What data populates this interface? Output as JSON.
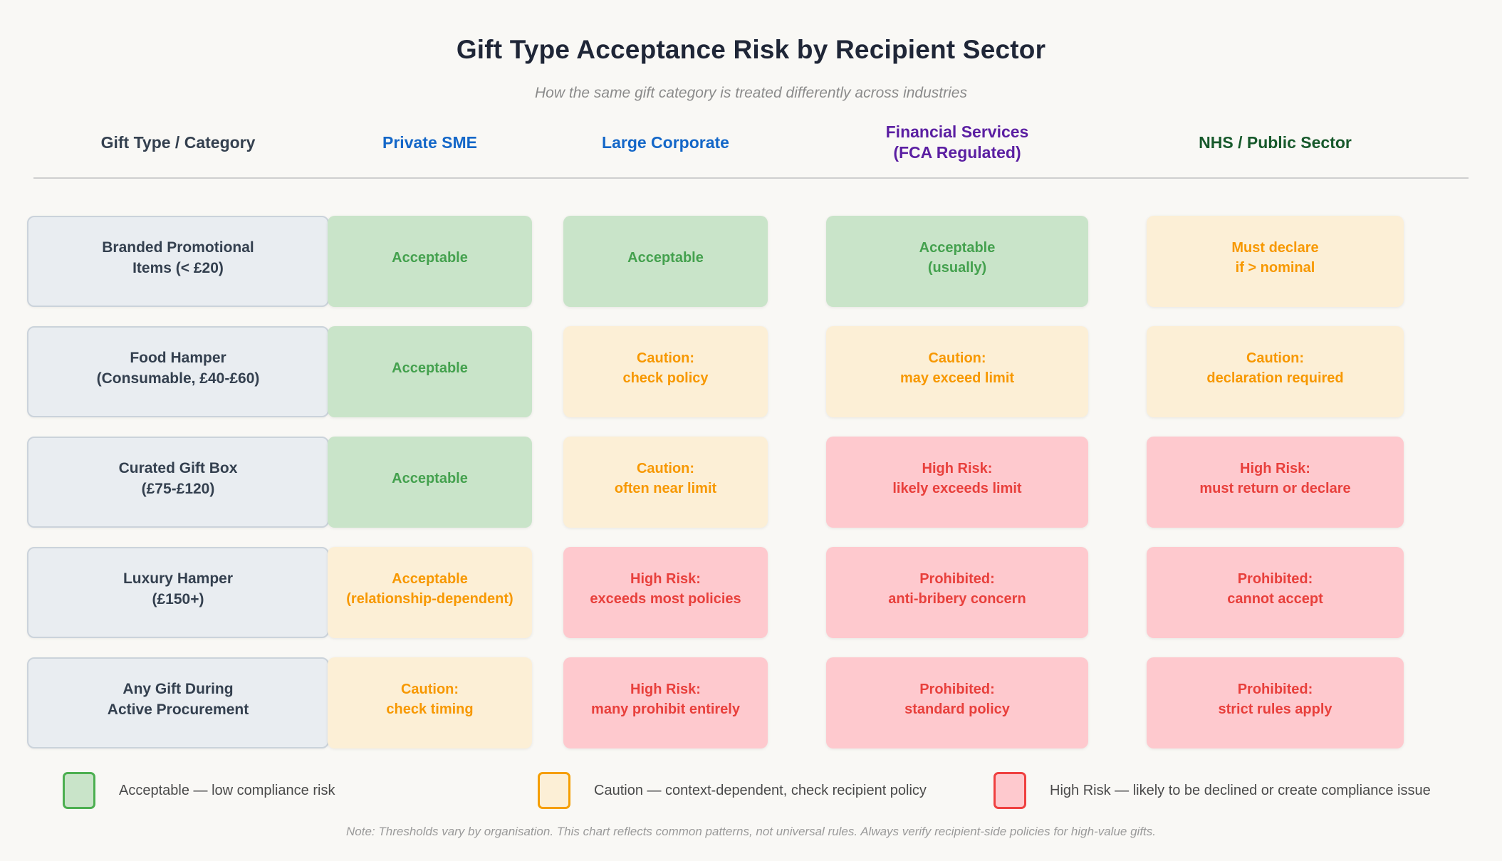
{
  "title": "Gift Type Acceptance Risk by Recipient Sector",
  "subtitle": "How the same gift category is treated differently across industries",
  "columns": [
    {
      "id": "gift-type",
      "label": "Gift Type / Category",
      "color": "#34404f"
    },
    {
      "id": "private-sme",
      "label": "Private SME",
      "color": "#1467c8"
    },
    {
      "id": "large-corporate",
      "label": "Large Corporate",
      "color": "#1467c8"
    },
    {
      "id": "financial-services",
      "label": "Financial Services\n(FCA Regulated)",
      "color": "#5b1fa2"
    },
    {
      "id": "nhs-public-sector",
      "label": "NHS / Public Sector",
      "color": "#17592b"
    }
  ],
  "rows": [
    {
      "label": "Branded Promotional\nItems (< £20)",
      "cells": [
        {
          "level": "acceptable",
          "text": "Acceptable"
        },
        {
          "level": "acceptable",
          "text": "Acceptable"
        },
        {
          "level": "acceptable",
          "text": "Acceptable\n(usually)"
        },
        {
          "level": "caution",
          "text": "Must declare\nif > nominal"
        }
      ]
    },
    {
      "label": "Food Hamper\n(Consumable, £40-£60)",
      "cells": [
        {
          "level": "acceptable",
          "text": "Acceptable"
        },
        {
          "level": "caution",
          "text": "Caution:\ncheck policy"
        },
        {
          "level": "caution",
          "text": "Caution:\nmay exceed limit"
        },
        {
          "level": "caution",
          "text": "Caution:\ndeclaration required"
        }
      ]
    },
    {
      "label": "Curated Gift Box\n(£75-£120)",
      "cells": [
        {
          "level": "acceptable",
          "text": "Acceptable"
        },
        {
          "level": "caution",
          "text": "Caution:\noften near limit"
        },
        {
          "level": "high",
          "text": "High Risk:\nlikely exceeds limit"
        },
        {
          "level": "high",
          "text": "High Risk:\nmust return or declare"
        }
      ]
    },
    {
      "label": "Luxury Hamper\n(£150+)",
      "cells": [
        {
          "level": "caution",
          "text": "Acceptable\n(relationship-dependent)"
        },
        {
          "level": "high",
          "text": "High Risk:\nexceeds most policies"
        },
        {
          "level": "high",
          "text": "Prohibited:\nanti-bribery concern"
        },
        {
          "level": "high",
          "text": "Prohibited:\ncannot accept"
        }
      ]
    },
    {
      "label": "Any Gift During\nActive Procurement",
      "cells": [
        {
          "level": "caution",
          "text": "Caution:\ncheck timing"
        },
        {
          "level": "high",
          "text": "High Risk:\nmany prohibit entirely"
        },
        {
          "level": "high",
          "text": "Prohibited:\nstandard policy"
        },
        {
          "level": "high",
          "text": "Prohibited:\nstrict rules apply"
        }
      ]
    }
  ],
  "legend": [
    {
      "level": "acceptable",
      "label": "Acceptable — low compliance risk"
    },
    {
      "level": "caution",
      "label": "Caution — context-dependent, check recipient policy"
    },
    {
      "level": "high",
      "label": "High Risk — likely to be declined or create compliance issue"
    }
  ],
  "note": "Note: Thresholds vary by organisation. This chart reflects common patterns, not universal rules. Always verify recipient-side policies for high-value gifts.",
  "colors": {
    "page_bg": "#f9f8f5",
    "label_bg": "#e9edf1",
    "label_border": "#cbd3db",
    "label_text": "#34404f",
    "acceptable_bg": "#c9e4c9",
    "acceptable_text": "#44a14e",
    "acceptable_border": "#4caf50",
    "caution_bg": "#fcefd6",
    "caution_text": "#f79800",
    "caution_border": "#f59e00",
    "high_bg": "#fec9ce",
    "high_text": "#e8403c",
    "high_border": "#ef4040",
    "title_text": "#1f2637",
    "subtitle_text": "#8b8b8b",
    "divider": "#cfcfcf",
    "header_blue": "#1467c8",
    "header_purple": "#5b1fa2",
    "header_green": "#17592b",
    "legend_text": "#4a4a4a",
    "note_text": "#9a9a9a"
  },
  "chart_data": {
    "type": "heatmap",
    "title": "Gift Type Acceptance Risk by Recipient Sector",
    "subtitle": "How the same gift category is treated differently across industries",
    "x_categories": [
      "Private SME",
      "Large Corporate",
      "Financial Services (FCA Regulated)",
      "NHS / Public Sector"
    ],
    "y_categories": [
      "Branded Promotional Items (< £20)",
      "Food Hamper (Consumable, £40-£60)",
      "Curated Gift Box (£75-£120)",
      "Luxury Hamper (£150+)",
      "Any Gift During Active Procurement"
    ],
    "levels_scale": [
      "acceptable",
      "caution",
      "high"
    ],
    "cells": [
      [
        {
          "level": "acceptable",
          "annotation": "Acceptable"
        },
        {
          "level": "acceptable",
          "annotation": "Acceptable"
        },
        {
          "level": "acceptable",
          "annotation": "Acceptable (usually)"
        },
        {
          "level": "caution",
          "annotation": "Must declare if > nominal"
        }
      ],
      [
        {
          "level": "acceptable",
          "annotation": "Acceptable"
        },
        {
          "level": "caution",
          "annotation": "Caution: check policy"
        },
        {
          "level": "caution",
          "annotation": "Caution: may exceed limit"
        },
        {
          "level": "caution",
          "annotation": "Caution: declaration required"
        }
      ],
      [
        {
          "level": "acceptable",
          "annotation": "Acceptable"
        },
        {
          "level": "caution",
          "annotation": "Caution: often near limit"
        },
        {
          "level": "high",
          "annotation": "High Risk: likely exceeds limit"
        },
        {
          "level": "high",
          "annotation": "High Risk: must return or declare"
        }
      ],
      [
        {
          "level": "caution",
          "annotation": "Acceptable (relationship-dependent)"
        },
        {
          "level": "high",
          "annotation": "High Risk: exceeds most policies"
        },
        {
          "level": "high",
          "annotation": "Prohibited: anti-bribery concern"
        },
        {
          "level": "high",
          "annotation": "Prohibited: cannot accept"
        }
      ],
      [
        {
          "level": "caution",
          "annotation": "Caution: check timing"
        },
        {
          "level": "high",
          "annotation": "High Risk: many prohibit entirely"
        },
        {
          "level": "high",
          "annotation": "Prohibited: standard policy"
        },
        {
          "level": "high",
          "annotation": "Prohibited: strict rules apply"
        }
      ]
    ],
    "legend": [
      {
        "level": "acceptable",
        "label": "Acceptable — low compliance risk",
        "color": "#c9e4c9"
      },
      {
        "level": "caution",
        "label": "Caution — context-dependent, check recipient policy",
        "color": "#fcefd6"
      },
      {
        "level": "high",
        "label": "High Risk — likely to be declined or create compliance issue",
        "color": "#fec9ce"
      }
    ],
    "footnote": "Note: Thresholds vary by organisation. This chart reflects common patterns, not universal rules. Always verify recipient-side policies for high-value gifts.",
    "legend_position": "bottom",
    "grid": false
  }
}
